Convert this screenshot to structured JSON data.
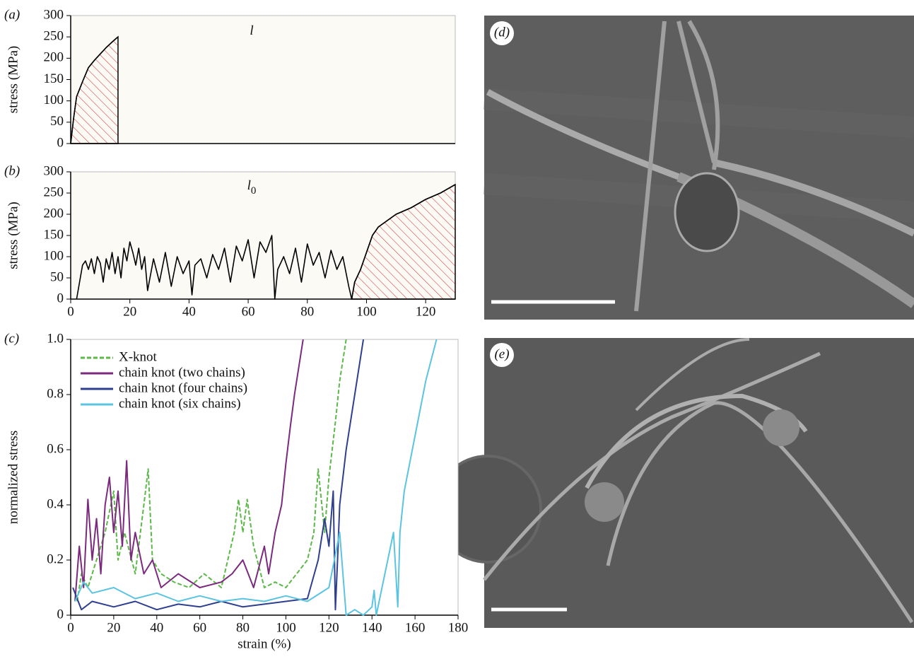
{
  "chart_data": [
    {
      "type": "line",
      "panel_label": "(a)",
      "ylabel": "stress (MPa)",
      "background": "#fbfaf4",
      "xlim": [
        0,
        130
      ],
      "ylim": [
        0,
        300
      ],
      "yticks": [
        0,
        50,
        100,
        150,
        200,
        250,
        300
      ],
      "hatch_from": 0,
      "annotation": {
        "text": "l"
      },
      "series": [
        {
          "color": "#000000",
          "x": [
            0,
            1,
            2,
            4,
            6,
            8,
            10,
            12,
            14,
            16
          ],
          "values": [
            0,
            60,
            110,
            145,
            178,
            195,
            210,
            225,
            238,
            250
          ]
        }
      ]
    },
    {
      "type": "line",
      "panel_label": "(b)",
      "ylabel": "stress (MPa)",
      "background": "#fbfaf4",
      "xlim": [
        0,
        130
      ],
      "ylim": [
        0,
        300
      ],
      "yticks": [
        0,
        50,
        100,
        150,
        200,
        250,
        300
      ],
      "xticks": [
        0,
        20,
        40,
        60,
        80,
        100,
        120
      ],
      "hatch_from": 95,
      "annotation": {
        "text": "l",
        "subscript": "0"
      },
      "series": [
        {
          "color": "#000000",
          "x": [
            2,
            3,
            4,
            5,
            6,
            7,
            8,
            9,
            10,
            11,
            12,
            13,
            14,
            15,
            16,
            17,
            18,
            19,
            20,
            21,
            22,
            23,
            24,
            25,
            26,
            28,
            30,
            32,
            34,
            36,
            38,
            40,
            41,
            42,
            44,
            46,
            48,
            50,
            52,
            54,
            56,
            58,
            60,
            62,
            64,
            66,
            68,
            69,
            70,
            72,
            74,
            76,
            78,
            80,
            82,
            84,
            86,
            88,
            90,
            92,
            94,
            95,
            96,
            98,
            100,
            102,
            104,
            106,
            110,
            115,
            120,
            125,
            130
          ],
          "values": [
            0,
            40,
            80,
            90,
            70,
            95,
            60,
            100,
            85,
            40,
            95,
            70,
            110,
            60,
            100,
            50,
            120,
            90,
            135,
            110,
            80,
            120,
            70,
            100,
            20,
            95,
            40,
            110,
            30,
            100,
            60,
            90,
            10,
            80,
            95,
            50,
            105,
            70,
            120,
            40,
            125,
            90,
            140,
            50,
            135,
            110,
            150,
            0,
            70,
            100,
            60,
            120,
            40,
            130,
            80,
            110,
            50,
            115,
            70,
            100,
            30,
            0,
            40,
            70,
            110,
            150,
            170,
            180,
            200,
            215,
            235,
            250,
            270
          ]
        }
      ]
    },
    {
      "type": "line",
      "panel_label": "(c)",
      "xlabel": "strain (%)",
      "ylabel": "normalized stress",
      "background": "#ffffff",
      "xlim": [
        0,
        180
      ],
      "ylim": [
        0,
        1
      ],
      "xticks": [
        0,
        20,
        40,
        60,
        80,
        100,
        120,
        140,
        160,
        180
      ],
      "yticks": [
        0,
        0.2,
        0.4,
        0.6,
        0.8,
        {
          "value": 1,
          "label": "1.0"
        }
      ],
      "legend": "upper left",
      "series": [
        {
          "name": "X-knot",
          "color": "#5cb848",
          "dashed": true,
          "x": [
            3,
            5,
            8,
            12,
            16,
            20,
            22,
            25,
            30,
            34,
            36,
            38,
            42,
            48,
            55,
            62,
            70,
            76,
            78,
            80,
            82,
            85,
            90,
            95,
            100,
            105,
            110,
            113,
            115,
            118,
            120,
            123,
            125,
            127,
            128
          ],
          "values": [
            0.05,
            0.15,
            0.1,
            0.2,
            0.3,
            0.45,
            0.2,
            0.3,
            0.15,
            0.4,
            0.53,
            0.2,
            0.15,
            0.12,
            0.1,
            0.15,
            0.1,
            0.3,
            0.42,
            0.3,
            0.42,
            0.25,
            0.1,
            0.12,
            0.1,
            0.15,
            0.2,
            0.3,
            0.53,
            0.3,
            0.5,
            0.7,
            0.85,
            0.95,
            1.0
          ]
        },
        {
          "name": "chain knot (two chains)",
          "color": "#7b2a7e",
          "x": [
            2,
            4,
            6,
            8,
            10,
            12,
            14,
            16,
            18,
            20,
            22,
            24,
            26,
            28,
            30,
            34,
            38,
            42,
            50,
            60,
            70,
            75,
            80,
            85,
            90,
            92,
            95,
            98,
            100,
            102,
            104,
            106,
            108
          ],
          "values": [
            0.05,
            0.25,
            0.1,
            0.42,
            0.2,
            0.35,
            0.15,
            0.4,
            0.5,
            0.3,
            0.45,
            0.25,
            0.56,
            0.2,
            0.3,
            0.15,
            0.2,
            0.1,
            0.15,
            0.1,
            0.12,
            0.15,
            0.2,
            0.1,
            0.25,
            0.15,
            0.3,
            0.4,
            0.55,
            0.68,
            0.8,
            0.9,
            1.0
          ]
        },
        {
          "name": "chain knot (four chains)",
          "color": "#2e3f8f",
          "x": [
            1,
            5,
            10,
            20,
            30,
            40,
            50,
            60,
            70,
            80,
            90,
            100,
            110,
            115,
            118,
            120,
            122,
            123,
            124,
            125,
            128,
            132,
            136
          ],
          "values": [
            0.1,
            0.02,
            0.05,
            0.03,
            0.05,
            0.02,
            0.04,
            0.03,
            0.05,
            0.03,
            0.04,
            0.05,
            0.06,
            0.2,
            0.35,
            0.25,
            0.45,
            0.02,
            0.2,
            0.4,
            0.6,
            0.8,
            1.0
          ]
        },
        {
          "name": "chain knot (six chains)",
          "color": "#5bc4e0",
          "x": [
            2,
            6,
            10,
            20,
            30,
            40,
            50,
            60,
            70,
            80,
            90,
            100,
            110,
            120,
            125,
            128,
            132,
            136,
            140,
            141,
            142,
            146,
            150,
            152,
            153,
            155,
            160,
            165,
            170
          ],
          "values": [
            0.05,
            0.12,
            0.08,
            0.1,
            0.06,
            0.08,
            0.05,
            0.07,
            0.05,
            0.06,
            0.05,
            0.07,
            0.05,
            0.1,
            0.3,
            0.0,
            0.02,
            0.0,
            0.03,
            0.09,
            0.0,
            0.15,
            0.3,
            0.03,
            0.3,
            0.45,
            0.65,
            0.85,
            1.0
          ]
        }
      ]
    }
  ],
  "images": [
    {
      "label": "(d)"
    },
    {
      "label": "(e)"
    }
  ]
}
